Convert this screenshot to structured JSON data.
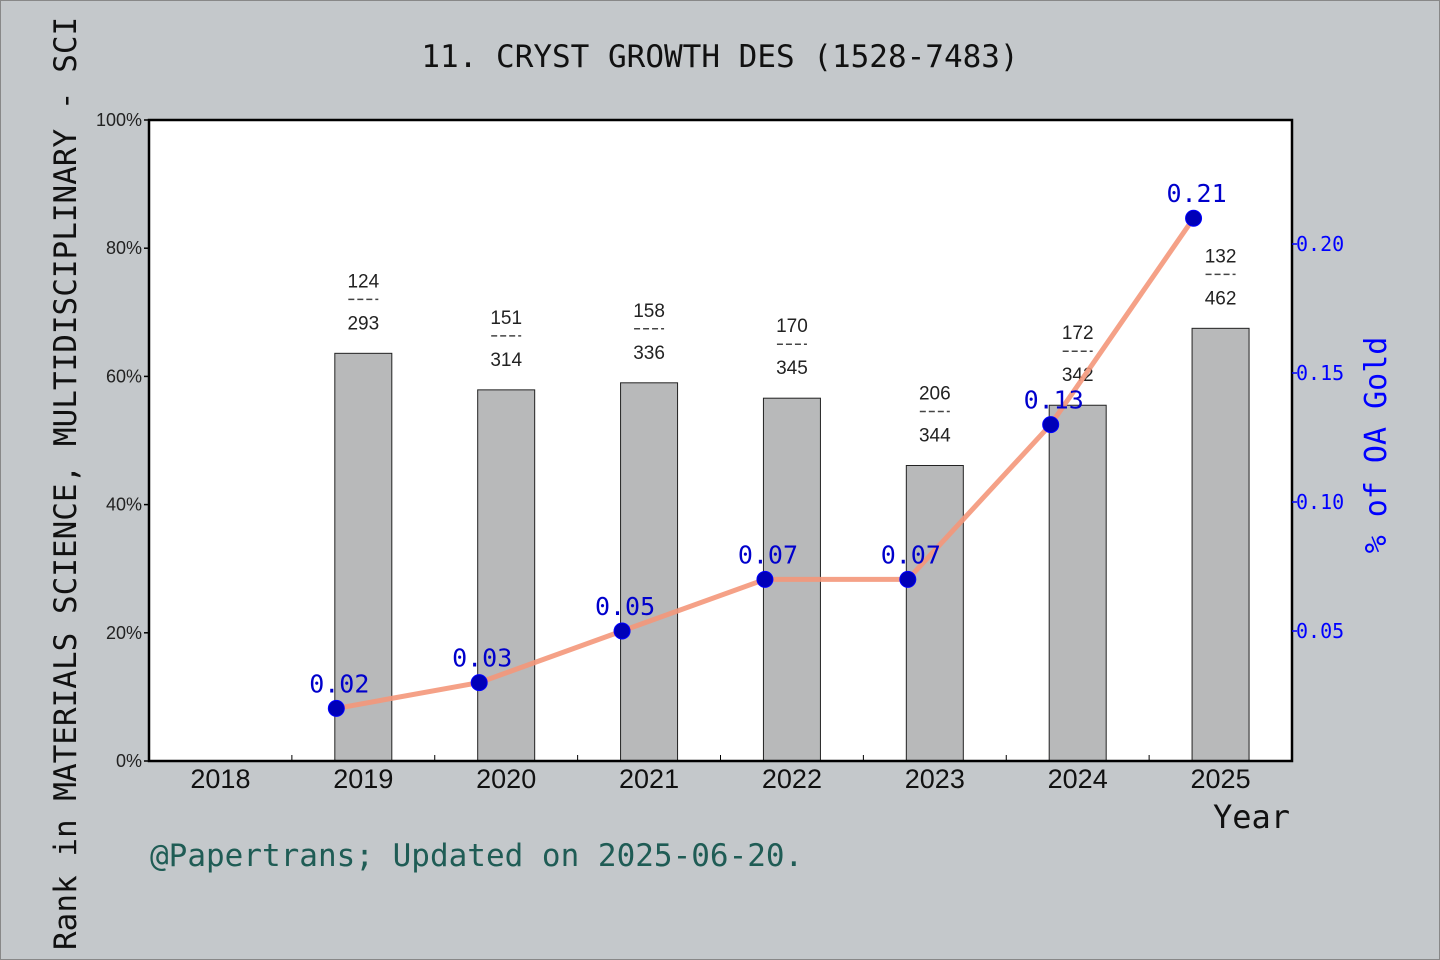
{
  "chart_data": {
    "type": "bar",
    "title": "11. CRYST GROWTH DES (1528-7483)",
    "xlabel": "Year",
    "ylabel_left": "Rank in MATERIALS SCIENCE, MULTIDISCIPLINARY - SCI",
    "ylabel_right": "% of OA Gold",
    "categories": [
      "2018",
      "2019",
      "2020",
      "2021",
      "2022",
      "2023",
      "2024",
      "2025"
    ],
    "left_axis": {
      "ylim": [
        0,
        100
      ],
      "ticks": [
        "0%",
        "20%",
        "40%",
        "60%",
        "80%",
        "100%"
      ]
    },
    "right_axis": {
      "ticks": [
        "0.05",
        "0.10",
        "0.15",
        "0.20"
      ]
    },
    "series": [
      {
        "kind": "bar",
        "values": [
          null,
          63.6,
          57.9,
          59.0,
          56.6,
          46.1,
          55.5,
          67.5
        ],
        "labels": [
          null,
          {
            "top": "124",
            "bottom": "293"
          },
          {
            "top": "151",
            "bottom": "314"
          },
          {
            "top": "158",
            "bottom": "336"
          },
          {
            "top": "170",
            "bottom": "345"
          },
          {
            "top": "206",
            "bottom": "344"
          },
          {
            "top": "172",
            "bottom": "342"
          },
          {
            "top": "132",
            "bottom": "462"
          }
        ],
        "color": "#b8b9ba"
      },
      {
        "kind": "line",
        "axis": "right",
        "values": [
          null,
          0.02,
          0.03,
          0.05,
          0.07,
          0.07,
          0.13,
          0.21
        ],
        "point_labels": [
          null,
          "0.02",
          "0.03",
          "0.05",
          "0.07",
          "0.07",
          "0.13",
          "0.21"
        ],
        "line_color": "#f4977a",
        "marker_color": "#0000b8"
      }
    ],
    "grid": false
  },
  "footer": "@Papertrans; Updated on 2025-06-20.",
  "colors": {
    "background": "#c4c8cb",
    "right_axis": "#0000ff",
    "footer": "#1f5c55"
  }
}
